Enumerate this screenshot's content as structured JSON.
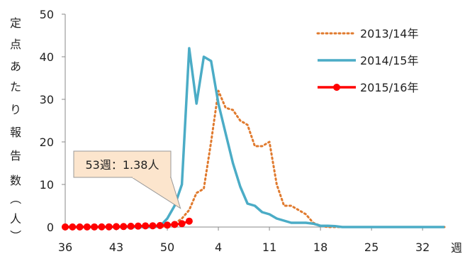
{
  "chart_data": {
    "type": "line",
    "title": "",
    "xlabel": "週",
    "ylabel": "定点あたり報告数（人）",
    "ylim": [
      0,
      50
    ],
    "y_ticks": [
      0,
      10,
      20,
      30,
      40,
      50
    ],
    "x_order": [
      36,
      37,
      38,
      39,
      40,
      41,
      42,
      43,
      44,
      45,
      46,
      47,
      48,
      49,
      50,
      51,
      52,
      53,
      1,
      2,
      3,
      4,
      5,
      6,
      7,
      8,
      9,
      10,
      11,
      12,
      13,
      14,
      15,
      16,
      17,
      18,
      19,
      20,
      21,
      22,
      23,
      24,
      25,
      26,
      27,
      28,
      29,
      30,
      31,
      32,
      33,
      34,
      35
    ],
    "x_tick_labels": [
      "36",
      "43",
      "50",
      "4",
      "11",
      "18",
      "25",
      "32"
    ],
    "grid": false,
    "legend_position": "top-right",
    "series": [
      {
        "name": "2013/14年",
        "style": "dotted",
        "color": "#E07A2E",
        "values": [
          0,
          0,
          0,
          0,
          0,
          0,
          0,
          0,
          0,
          0,
          0,
          0,
          0,
          0,
          0.3,
          0.8,
          2,
          4,
          8,
          9,
          20,
          32,
          28,
          27.5,
          25,
          24,
          19,
          19,
          20,
          10,
          5,
          5,
          4,
          3,
          1,
          0.3,
          0,
          0,
          0,
          0,
          0,
          0,
          0,
          0,
          0,
          0,
          0,
          0,
          0,
          0,
          0,
          0,
          0
        ]
      },
      {
        "name": "2014/15年",
        "style": "solid",
        "color": "#4BACC6",
        "values": [
          0,
          0,
          0,
          0,
          0,
          0,
          0,
          0,
          0,
          0,
          0,
          0,
          0,
          0.2,
          2,
          5,
          10,
          42,
          29,
          40,
          39,
          29,
          22,
          15,
          9.5,
          5.5,
          5,
          3.5,
          3,
          2,
          1.5,
          1,
          1,
          1,
          0.8,
          0.3,
          0.3,
          0.2,
          0,
          0,
          0,
          0,
          0,
          0,
          0,
          0,
          0,
          0,
          0,
          0,
          0,
          0,
          0
        ]
      },
      {
        "name": "2015/16年",
        "style": "solid-markers",
        "color": "#FF0000",
        "values": [
          0.02,
          0.02,
          0.02,
          0.03,
          0.03,
          0.04,
          0.05,
          0.1,
          0.12,
          0.18,
          0.22,
          0.28,
          0.3,
          0.35,
          0.45,
          0.6,
          0.8,
          1.38
        ]
      }
    ],
    "annotation": {
      "text": "53週：1.38人",
      "series": "2015/16年",
      "week": 53,
      "value": 1.38
    }
  }
}
